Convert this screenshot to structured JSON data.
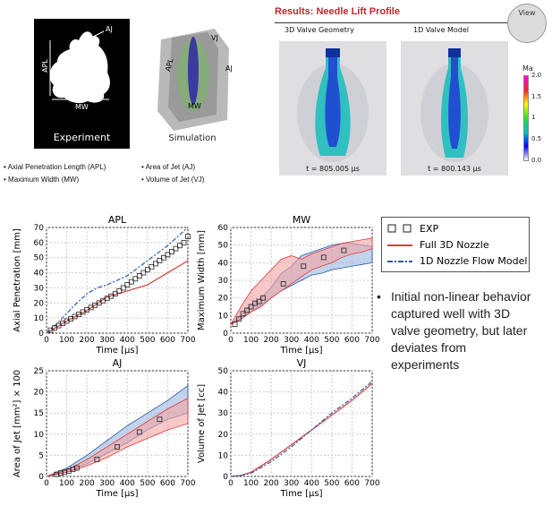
{
  "top": {
    "experiment_label": "Experiment",
    "simulation_label": "Simulation",
    "exp_annotations": {
      "aj": "AJ",
      "apl": "APL",
      "mw": "MW"
    },
    "sim_annotations": {
      "vj": "VJ",
      "aj": "AJ",
      "apl": "APL",
      "mw": "MW"
    },
    "results_title": "Results: Needle Lift Profile",
    "view_button": "View",
    "panel_3d_title": "3D Valve Geometry",
    "panel_1d_title": "1D Valve Model",
    "time_3d": "t = 805.005 µs",
    "time_1d": "t = 800.143 µs",
    "colorbar": {
      "title": "Ma",
      "ticks": [
        "2.0",
        "1.5",
        "1",
        "0.5",
        "0.0"
      ]
    },
    "bullets_left": [
      "Axial Penetration Length (APL)",
      "Maximum Width (MW)"
    ],
    "bullets_right": [
      "Area of Jet (AJ)",
      "Volume of Jet (VJ)"
    ]
  },
  "legend": {
    "exp": "EXP",
    "full3d": "Full 3D Nozzle",
    "oned": "1D Nozzle Flow Model"
  },
  "note": "Initial non-linear behavior captured well with 3D valve geometry, but later deviates from experiments",
  "colors": {
    "exp": "#222222",
    "red": "#e03a3a",
    "blue": "#2a5caa",
    "red_band": "#f3a3a3",
    "blue_band": "#9ab6dd"
  },
  "chart_data": [
    {
      "type": "line",
      "title": "APL",
      "xlabel": "Time [μs]",
      "ylabel": "Axial Penetration [mm]",
      "xlim": [
        0,
        700
      ],
      "ylim": [
        0,
        70
      ],
      "xticks": [
        0,
        100,
        200,
        300,
        400,
        500,
        600,
        700
      ],
      "yticks": [
        0,
        10,
        20,
        30,
        40,
        50,
        60,
        70
      ],
      "grid": true,
      "exp": {
        "x": [
          20,
          40,
          60,
          80,
          100,
          120,
          140,
          160,
          180,
          200,
          220,
          240,
          260,
          280,
          300,
          320,
          340,
          360,
          380,
          400,
          420,
          440,
          460,
          480,
          500,
          520,
          540,
          560,
          580,
          600,
          620,
          640,
          660,
          680,
          700
        ],
        "y": [
          2,
          3.5,
          5,
          6.5,
          8,
          9.5,
          11,
          12.5,
          14,
          15.5,
          17,
          18.5,
          20,
          21.5,
          23,
          24.5,
          26,
          28,
          30,
          32,
          34,
          36,
          38,
          40,
          42,
          44,
          46,
          48,
          50,
          52,
          54,
          56,
          58,
          60,
          64
        ]
      },
      "red": {
        "x": [
          0,
          100,
          200,
          300,
          350,
          400,
          500,
          600,
          700
        ],
        "y": [
          0,
          8,
          15,
          24,
          26,
          28,
          32,
          40,
          48
        ]
      },
      "blue": {
        "x": [
          0,
          50,
          100,
          150,
          200,
          250,
          300,
          400,
          500,
          600,
          700
        ],
        "y": [
          0,
          6,
          13,
          20,
          26,
          30,
          32,
          38,
          48,
          58,
          70
        ]
      }
    },
    {
      "type": "line",
      "title": "MW",
      "xlabel": "Time [μs]",
      "ylabel": "Maximum Width [mm]",
      "xlim": [
        0,
        700
      ],
      "ylim": [
        0,
        60
      ],
      "xticks": [
        0,
        100,
        200,
        300,
        400,
        500,
        600,
        700
      ],
      "yticks": [
        0,
        10,
        20,
        30,
        40,
        50,
        60
      ],
      "grid": true,
      "exp": {
        "x": [
          20,
          40,
          60,
          80,
          100,
          120,
          140,
          160,
          260,
          360,
          460,
          560
        ],
        "y": [
          5,
          8,
          11,
          13,
          15,
          17,
          18,
          20,
          28,
          38,
          43,
          47
        ]
      },
      "red_band": {
        "x": [
          0,
          50,
          100,
          150,
          200,
          250,
          300,
          350,
          400,
          450,
          500,
          550,
          600,
          650,
          700
        ],
        "upper": [
          5,
          15,
          24,
          30,
          36,
          42,
          44,
          42,
          45,
          47,
          49,
          51,
          52,
          53,
          54
        ],
        "lower": [
          5,
          8,
          12,
          15,
          20,
          24,
          28,
          32,
          36,
          38,
          40,
          43,
          45,
          46,
          48
        ]
      },
      "blue_band": {
        "x": [
          0,
          50,
          100,
          150,
          200,
          250,
          300,
          350,
          400,
          450,
          500,
          550,
          600,
          650,
          700
        ],
        "upper": [
          5,
          10,
          16,
          20,
          26,
          34,
          38,
          44,
          46,
          48,
          50,
          51,
          51,
          50,
          49
        ],
        "lower": [
          5,
          8,
          12,
          16,
          20,
          24,
          27,
          30,
          33,
          34,
          36,
          37,
          38,
          39,
          40
        ]
      }
    },
    {
      "type": "line",
      "title": "AJ",
      "xlabel": "Time [μs]",
      "ylabel": "Area of Jet [mm²] × 100",
      "xlim": [
        0,
        700
      ],
      "ylim": [
        0,
        25
      ],
      "xticks": [
        0,
        100,
        200,
        300,
        400,
        500,
        600,
        700
      ],
      "yticks": [
        0,
        5,
        10,
        15,
        20,
        25
      ],
      "grid": true,
      "exp": {
        "x": [
          50,
          70,
          90,
          110,
          130,
          150,
          250,
          350,
          460,
          560
        ],
        "y": [
          0.5,
          0.8,
          1.0,
          1.3,
          1.7,
          2.0,
          4.0,
          7.0,
          10.5,
          13.5
        ]
      },
      "red_band": {
        "x": [
          0,
          100,
          200,
          300,
          400,
          500,
          600,
          700
        ],
        "upper": [
          0,
          1.5,
          4,
          7,
          10,
          13,
          16,
          18.5
        ],
        "lower": [
          0,
          1,
          2.5,
          4.5,
          7,
          9,
          11,
          12.5
        ]
      },
      "blue_band": {
        "x": [
          0,
          100,
          200,
          300,
          400,
          500,
          600,
          700
        ],
        "upper": [
          0,
          2,
          5,
          8.5,
          12,
          15,
          18,
          21.5
        ],
        "lower": [
          0,
          1,
          3,
          5.5,
          8,
          11,
          13.5,
          15
        ]
      }
    },
    {
      "type": "line",
      "title": "VJ",
      "xlabel": "Time [μs]",
      "ylabel": "Volume of Jet [cc]",
      "xlim": [
        0,
        700
      ],
      "ylim": [
        0,
        50
      ],
      "xticks": [
        0,
        100,
        200,
        300,
        400,
        500,
        600,
        700
      ],
      "yticks": [
        0,
        10,
        20,
        30,
        40,
        50
      ],
      "grid": true,
      "red": {
        "x": [
          0,
          50,
          100,
          200,
          300,
          400,
          500,
          600,
          700
        ],
        "y": [
          0,
          0.5,
          2,
          8,
          15,
          22,
          29,
          36,
          44
        ]
      },
      "blue": {
        "x": [
          0,
          50,
          100,
          200,
          300,
          400,
          500,
          600,
          700
        ],
        "y": [
          0,
          0.5,
          1.5,
          7,
          14,
          22,
          30,
          37,
          45
        ]
      }
    }
  ]
}
